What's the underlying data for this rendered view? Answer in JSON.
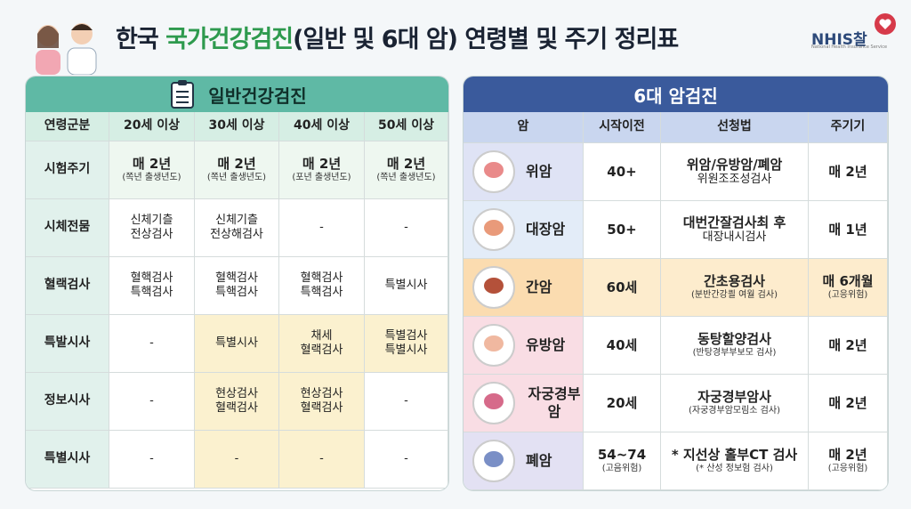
{
  "header": {
    "title_prefix": "한국",
    "title_highlight": "국가건강검진",
    "title_suffix": "(일반 및 6대 암) 연령별 및 주기 정리표",
    "logo": "NHIS찰",
    "logo_sub": "National Health Insurance Service"
  },
  "general": {
    "title": "일반건강검진",
    "columns": [
      "연령군분",
      "20세 이상",
      "30세 이상",
      "40세 이상",
      "50세 이상"
    ],
    "rows": [
      {
        "label": "시험주기",
        "cells": [
          [
            "매 2년",
            "(쪽년 출생년도)"
          ],
          [
            "매 2년",
            "(쪽년 출생년도)"
          ],
          [
            "매 2년",
            "(포년 출생년도)"
          ],
          [
            "매 2년",
            "(쪽년 출생년도)"
          ]
        ]
      },
      {
        "label": "시체전뭄",
        "cells": [
          [
            "신체기츨",
            "전상검사"
          ],
          [
            "신체기츨",
            "전상해검사"
          ],
          [
            "-"
          ],
          [
            "-"
          ]
        ]
      },
      {
        "label": "혈랙검사",
        "cells": [
          [
            "혈핵검사",
            "특핵검사"
          ],
          [
            "혈핵검사",
            "특핵검사"
          ],
          [
            "혈핵검사",
            "특핵검사"
          ],
          [
            "특별시사"
          ]
        ]
      },
      {
        "label": "특발시사",
        "cells": [
          [
            "-"
          ],
          [
            "특별시사"
          ],
          [
            "채세",
            "혈랙검사"
          ],
          [
            "특별검사",
            "특별시사"
          ]
        ]
      },
      {
        "label": "정보시사",
        "cells": [
          [
            "-"
          ],
          [
            "현상검사",
            "혈랙검사"
          ],
          [
            "현상검사",
            "혈랙검사"
          ],
          [
            "-"
          ]
        ]
      },
      {
        "label": "특별시사",
        "cells": [
          [
            "-"
          ],
          [
            "-"
          ],
          [
            "-"
          ],
          [
            "-"
          ]
        ]
      }
    ]
  },
  "cancer": {
    "title": "6대 암검진",
    "columns": [
      "암",
      "시작이전",
      "선청법",
      "주기기"
    ],
    "rows": [
      {
        "name": "위암",
        "start": [
          "40+"
        ],
        "method": [
          "위암/유방암/폐암",
          "위원조조성검사"
        ],
        "cycle": [
          "매 2년"
        ]
      },
      {
        "name": "대장암",
        "start": [
          "50+"
        ],
        "method": [
          "대번간잘검사최 후",
          "대장내시검사"
        ],
        "cycle": [
          "매 1년"
        ]
      },
      {
        "name": "간암",
        "start": [
          "60세"
        ],
        "method": [
          "간초용검사",
          "(분반간강쾰 여월 검사)"
        ],
        "cycle": [
          "매 6개월",
          "(고응위험)"
        ]
      },
      {
        "name": "유방암",
        "start": [
          "40세"
        ],
        "method": [
          "동탕할양검사",
          "(반탕경부부보모 검사)"
        ],
        "cycle": [
          "매 2년"
        ]
      },
      {
        "name": "자궁경부암",
        "start": [
          "20세"
        ],
        "method": [
          "자궁경부암사",
          "(자궁경부암모림소 검사)"
        ],
        "cycle": [
          "매 2년"
        ]
      },
      {
        "name": "폐암",
        "start": [
          "54~74",
          "(고음위험)"
        ],
        "method": [
          "* 지선상 홀부CT 검사",
          "(* 산성 정보험 검사)"
        ],
        "cycle": [
          "매 2년",
          "(고응위험)"
        ]
      }
    ]
  }
}
